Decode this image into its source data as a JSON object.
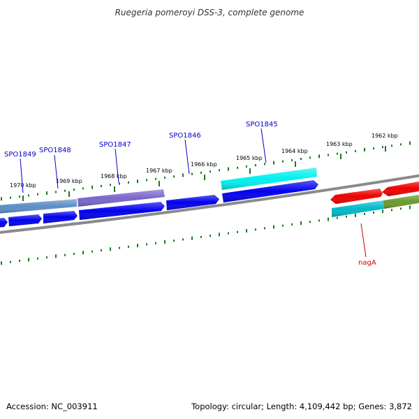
{
  "title": "Ruegeria pomeroyi DSS-3, complete genome",
  "footer": {
    "accession": "Accession: NC_003911",
    "summary": "Topology: circular; Length: 4,109,442 bp; Genes: 3,872"
  },
  "colors": {
    "backbone": "#8a8a8a",
    "tick": "#1a7a1a",
    "label_blue": "#0000cc",
    "label_red": "#cc0000",
    "blue": "#0000ee",
    "cyan": "#00f0f0",
    "teal": "#00b8c8",
    "steelblue": "#5b8ec4",
    "purple": "#7a66cc",
    "red": "#ee0000",
    "olive": "#6b9a2a"
  },
  "ticks": [
    "1970 kbp",
    "1969 kbp",
    "1968 kbp",
    "1967 kbp",
    "1966 kbp",
    "1965 kbp",
    "1964 kbp",
    "1963 kbp",
    "1962 kbp"
  ],
  "gene_labels": [
    {
      "text": "SPO1849",
      "color": "label_blue"
    },
    {
      "text": "SPO1848",
      "color": "label_blue"
    },
    {
      "text": "SPO1847",
      "color": "label_blue"
    },
    {
      "text": "SPO1846",
      "color": "label_blue"
    },
    {
      "text": "SPO1845",
      "color": "label_blue"
    },
    {
      "text": "nagA",
      "color": "label_red"
    }
  ]
}
